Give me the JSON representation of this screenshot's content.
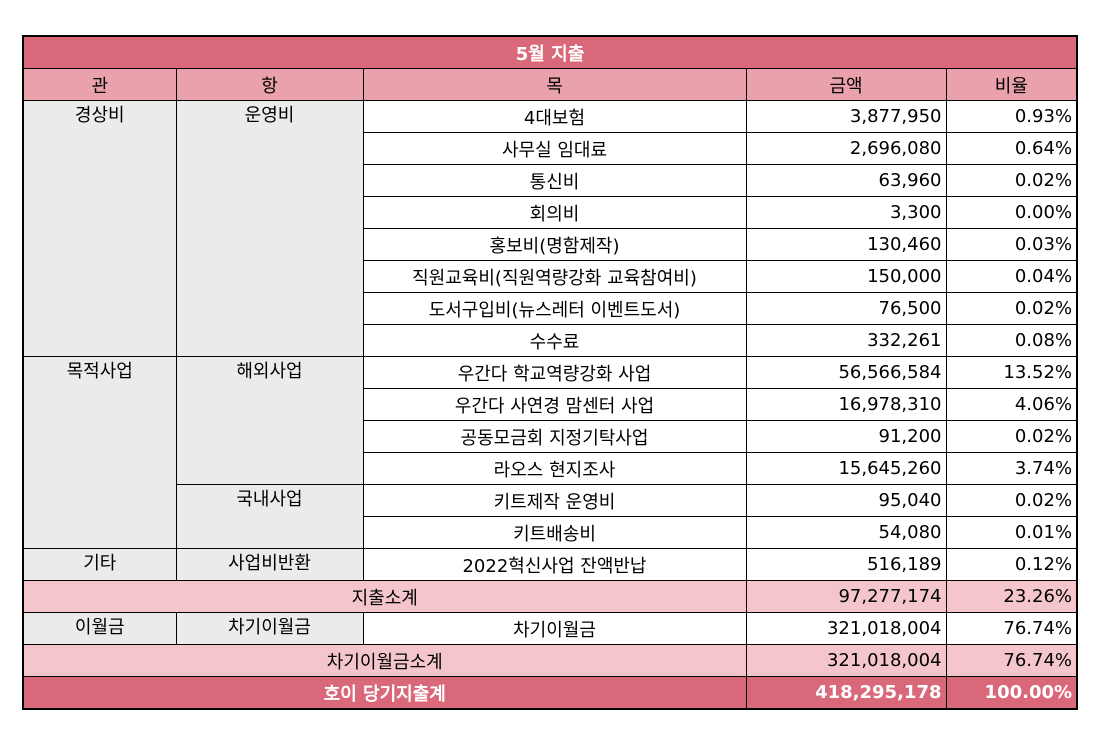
{
  "title": "5월 지출",
  "headers": [
    "관",
    "항",
    "목",
    "금액",
    "비율"
  ],
  "sections": [
    {
      "gwan": "경상비",
      "groups": [
        {
          "hang": "운영비",
          "items": [
            {
              "mok": "4대보험",
              "amount": "3,877,950",
              "ratio": "0.93%"
            },
            {
              "mok": "사무실 임대료",
              "amount": "2,696,080",
              "ratio": "0.64%"
            },
            {
              "mok": "통신비",
              "amount": "63,960",
              "ratio": "0.02%"
            },
            {
              "mok": "회의비",
              "amount": "3,300",
              "ratio": "0.00%"
            },
            {
              "mok": "홍보비(명함제작)",
              "amount": "130,460",
              "ratio": "0.03%"
            },
            {
              "mok": "직원교육비(직원역량강화 교육참여비)",
              "amount": "150,000",
              "ratio": "0.04%"
            },
            {
              "mok": "도서구입비(뉴스레터 이벤트도서)",
              "amount": "76,500",
              "ratio": "0.02%"
            },
            {
              "mok": "수수료",
              "amount": "332,261",
              "ratio": "0.08%"
            }
          ]
        }
      ]
    },
    {
      "gwan": "목적사업",
      "groups": [
        {
          "hang": "해외사업",
          "items": [
            {
              "mok": "우간다 학교역량강화 사업",
              "amount": "56,566,584",
              "ratio": "13.52%"
            },
            {
              "mok": "우간다 사연경 맘센터 사업",
              "amount": "16,978,310",
              "ratio": "4.06%"
            },
            {
              "mok": "공동모금회 지정기탁사업",
              "amount": "91,200",
              "ratio": "0.02%"
            },
            {
              "mok": "라오스 현지조사",
              "amount": "15,645,260",
              "ratio": "3.74%"
            }
          ]
        },
        {
          "hang": "국내사업",
          "items": [
            {
              "mok": "키트제작 운영비",
              "amount": "95,040",
              "ratio": "0.02%"
            },
            {
              "mok": "키트배송비",
              "amount": "54,080",
              "ratio": "0.01%"
            }
          ]
        }
      ]
    },
    {
      "gwan": "기타",
      "groups": [
        {
          "hang": "사업비반환",
          "items": [
            {
              "mok": "2022혁신사업 잔액반납",
              "amount": "516,189",
              "ratio": "0.12%"
            }
          ]
        }
      ]
    }
  ],
  "subtotal": {
    "label": "지출소계",
    "amount": "97,277,174",
    "ratio": "23.26%"
  },
  "carryover": {
    "gwan": "이월금",
    "hang": "차기이월금",
    "mok": "차기이월금",
    "amount": "321,018,004",
    "ratio": "76.74%"
  },
  "carryover_subtotal": {
    "label": "차기이월금소계",
    "amount": "321,018,004",
    "ratio": "76.74%"
  },
  "total": {
    "label": "호이 당기지출계",
    "amount": "418,295,178",
    "ratio": "100.00%"
  }
}
